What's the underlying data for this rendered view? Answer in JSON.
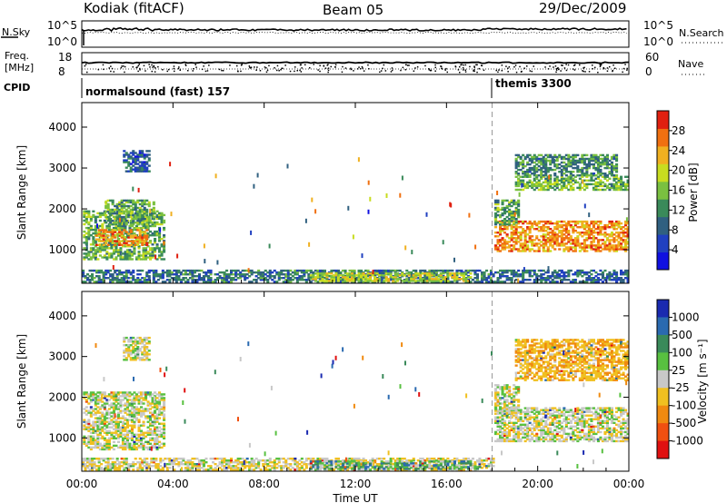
{
  "header": {
    "station": "Kodiak (fitACF)",
    "beam": "Beam 05",
    "date": "29/Dec/2009"
  },
  "strip_panels": {
    "nsky": {
      "label": "N.Sky",
      "ticks": [
        "10^5",
        "10^0"
      ]
    },
    "nsearch": {
      "label": "N.Search",
      "ticks": [
        "10^5",
        "10^0"
      ]
    },
    "freq": {
      "label_lines": [
        "Freq.",
        "[MHz]"
      ],
      "ticks": [
        "18",
        "8"
      ]
    },
    "nave": {
      "label": "Nave",
      "ticks": [
        "60",
        "0"
      ]
    },
    "cpid": {
      "label": "CPID",
      "segments": [
        {
          "text": "normalsound (fast) 157",
          "start_hour": 0
        },
        {
          "text": "themis 3300",
          "start_hour": 18
        }
      ]
    }
  },
  "chart_data": [
    {
      "type": "heatmap",
      "title": "",
      "xlabel": "Time UT",
      "ylabel": "Slant Range [km]",
      "x_ticks": [
        "00:00",
        "04:00",
        "08:00",
        "12:00",
        "16:00",
        "20:00",
        "00:00"
      ],
      "x_range_hours": [
        0,
        24
      ],
      "y_ticks": [
        1000,
        2000,
        3000,
        4000
      ],
      "ylim": [
        180,
        4600
      ],
      "mode_change_hour": 18,
      "colorbar": {
        "label": "Power [dB]",
        "ticks": [
          4,
          8,
          12,
          16,
          20,
          24,
          28
        ],
        "range": [
          0,
          32
        ],
        "colors": [
          "#1010e0",
          "#2040c0",
          "#306080",
          "#3a8a5a",
          "#7ac040",
          "#c8dc20",
          "#f0b020",
          "#f07010",
          "#e02010"
        ]
      },
      "regions": [
        {
          "t": [
            0.05,
            3.6
          ],
          "r": [
            750,
            1950
          ],
          "level": 15
        },
        {
          "t": [
            0.6,
            2.9
          ],
          "r": [
            1100,
            1500
          ],
          "level": 25
        },
        {
          "t": [
            1.0,
            3.2
          ],
          "r": [
            1600,
            2200
          ],
          "level": 14
        },
        {
          "t": [
            1.8,
            3.0
          ],
          "r": [
            2900,
            3400
          ],
          "level": 8
        },
        {
          "t": [
            0.0,
            18.0
          ],
          "r": [
            200,
            500
          ],
          "level": 10
        },
        {
          "t": [
            10.0,
            17.0
          ],
          "r": [
            220,
            440
          ],
          "level": 19
        },
        {
          "t": [
            18.1,
            24.0
          ],
          "r": [
            950,
            1700
          ],
          "level": 25
        },
        {
          "t": [
            18.1,
            19.2
          ],
          "r": [
            1600,
            2200
          ],
          "level": 14
        },
        {
          "t": [
            19.0,
            24.0
          ],
          "r": [
            2450,
            2800
          ],
          "level": 15
        },
        {
          "t": [
            19.0,
            23.5
          ],
          "r": [
            2800,
            3300
          ],
          "level": 12
        },
        {
          "t": [
            18.1,
            24.0
          ],
          "r": [
            200,
            500
          ],
          "level": 9
        }
      ]
    },
    {
      "type": "heatmap",
      "title": "",
      "xlabel": "Time UT",
      "ylabel": "Slant Range [km]",
      "x_ticks": [
        "00:00",
        "04:00",
        "08:00",
        "12:00",
        "16:00",
        "20:00",
        "00:00"
      ],
      "x_range_hours": [
        0,
        24
      ],
      "y_ticks": [
        1000,
        2000,
        3000,
        4000
      ],
      "ylim": [
        180,
        4600
      ],
      "mode_change_hour": 18,
      "colorbar": {
        "label": "Velocity [m s⁻¹]",
        "ticks": [
          1000,
          500,
          100,
          25,
          -25,
          -100,
          -500,
          -1000
        ],
        "colors": [
          "#1a2ab0",
          "#2a6ab0",
          "#3a8a5a",
          "#58c040",
          "#c8c8c8",
          "#f0c020",
          "#f08a10",
          "#f05010",
          "#e01010"
        ]
      },
      "regions": [
        {
          "t": [
            0.05,
            3.6
          ],
          "r": [
            700,
            2100
          ],
          "vel": 0
        },
        {
          "t": [
            1.8,
            3.0
          ],
          "r": [
            2900,
            3450
          ],
          "vel": 0
        },
        {
          "t": [
            0.0,
            18.0
          ],
          "r": [
            200,
            480
          ],
          "vel": -20
        },
        {
          "t": [
            10.0,
            17.5
          ],
          "r": [
            220,
            440
          ],
          "vel": 60
        },
        {
          "t": [
            18.1,
            24.0
          ],
          "r": [
            900,
            1750
          ],
          "vel": 0
        },
        {
          "t": [
            18.1,
            19.2
          ],
          "r": [
            1600,
            2300
          ],
          "vel": 0
        },
        {
          "t": [
            19.0,
            24.0
          ],
          "r": [
            2400,
            3400
          ],
          "vel": -80
        }
      ]
    }
  ]
}
